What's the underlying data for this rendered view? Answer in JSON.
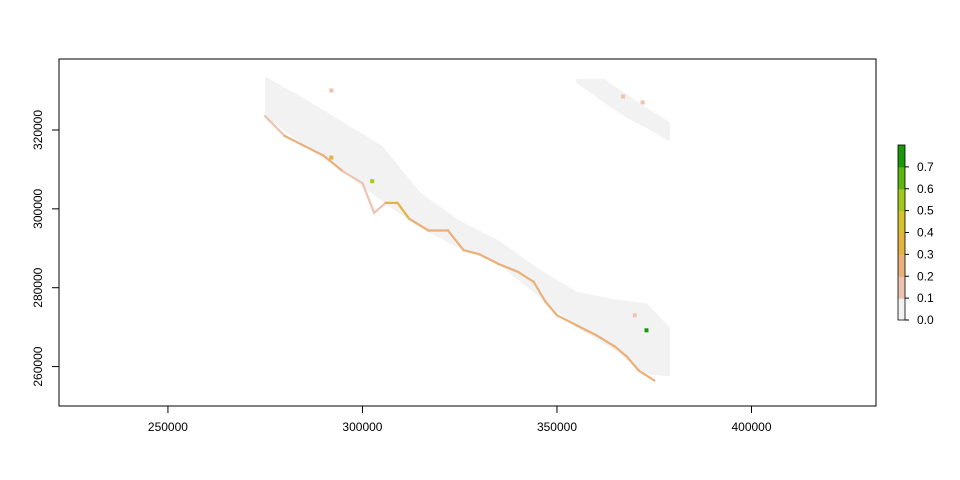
{
  "chart_data": {
    "type": "heatmap",
    "xlim": [
      222000,
      432000
    ],
    "ylim": [
      250000,
      338000
    ],
    "x_ticks": [
      {
        "value": 250000,
        "label": "250000"
      },
      {
        "value": 300000,
        "label": "300000"
      },
      {
        "value": 350000,
        "label": "350000"
      },
      {
        "value": 400000,
        "label": "400000"
      }
    ],
    "y_ticks": [
      {
        "value": 260000,
        "label": "260000"
      },
      {
        "value": 280000,
        "label": "280000"
      },
      {
        "value": 300000,
        "label": "300000"
      },
      {
        "value": 320000,
        "label": "320000"
      }
    ],
    "legend": {
      "min": 0,
      "max": 0.8,
      "ticks": [
        {
          "value": 0.0,
          "label": "0.0"
        },
        {
          "value": 0.1,
          "label": "0.1"
        },
        {
          "value": 0.2,
          "label": "0.2"
        },
        {
          "value": 0.3,
          "label": "0.3"
        },
        {
          "value": 0.4,
          "label": "0.4"
        },
        {
          "value": 0.5,
          "label": "0.5"
        },
        {
          "value": 0.6,
          "label": "0.6"
        },
        {
          "value": 0.7,
          "label": "0.7"
        }
      ],
      "colors": [
        "#f2f2f2",
        "#eec3b2",
        "#e9b07a",
        "#e5b33f",
        "#d6c22a",
        "#a3c81b",
        "#5cb80f",
        "#1a9a0a"
      ]
    },
    "raster": {
      "background_color": "#f2f2f2",
      "main_band": [
        {
          "x": 275000,
          "y_top": 333500,
          "y_bot": 323500
        },
        {
          "x": 285000,
          "y_top": 328000,
          "y_bot": 316000
        },
        {
          "x": 295000,
          "y_top": 322000,
          "y_bot": 309500
        },
        {
          "x": 305000,
          "y_top": 316000,
          "y_bot": 302000
        },
        {
          "x": 315000,
          "y_top": 304000,
          "y_bot": 295000
        },
        {
          "x": 325000,
          "y_top": 297000,
          "y_bot": 290000
        },
        {
          "x": 335000,
          "y_top": 292000,
          "y_bot": 286000
        },
        {
          "x": 345000,
          "y_top": 285000,
          "y_bot": 278000
        },
        {
          "x": 355000,
          "y_top": 279000,
          "y_bot": 270000
        },
        {
          "x": 365000,
          "y_top": 277000,
          "y_bot": 264000
        },
        {
          "x": 373000,
          "y_top": 276000,
          "y_bot": 258000
        },
        {
          "x": 379000,
          "y_top": 270000,
          "y_bot": 257500
        }
      ],
      "northeast_band": [
        {
          "x": 355000,
          "y_top": 333000,
          "y_bot": 332000
        },
        {
          "x": 362000,
          "y_top": 333000,
          "y_bot": 327000
        },
        {
          "x": 368000,
          "y_top": 329000,
          "y_bot": 323000
        },
        {
          "x": 374000,
          "y_top": 325000,
          "y_bot": 320000
        },
        {
          "x": 379000,
          "y_top": 322000,
          "y_bot": 317000
        }
      ],
      "coast_edge": [
        {
          "x": 275000,
          "y": 323500,
          "value": 0.15
        },
        {
          "x": 280000,
          "y": 318500,
          "value": 0.2
        },
        {
          "x": 285000,
          "y": 316000,
          "value": 0.2
        },
        {
          "x": 290000,
          "y": 313500,
          "value": 0.2
        },
        {
          "x": 295000,
          "y": 309500,
          "value": 0.15
        },
        {
          "x": 300000,
          "y": 306500,
          "value": 0.15
        },
        {
          "x": 303000,
          "y": 299000,
          "value": 0.15
        },
        {
          "x": 306000,
          "y": 301500,
          "value": 0.35
        },
        {
          "x": 309000,
          "y": 301500,
          "value": 0.35
        },
        {
          "x": 312000,
          "y": 297500,
          "value": 0.2
        },
        {
          "x": 317000,
          "y": 294500,
          "value": 0.2
        },
        {
          "x": 322000,
          "y": 294500,
          "value": 0.2
        },
        {
          "x": 326000,
          "y": 289500,
          "value": 0.2
        },
        {
          "x": 330000,
          "y": 288500,
          "value": 0.2
        },
        {
          "x": 335000,
          "y": 286000,
          "value": 0.2
        },
        {
          "x": 340000,
          "y": 284000,
          "value": 0.2
        },
        {
          "x": 344000,
          "y": 281500,
          "value": 0.2
        },
        {
          "x": 347000,
          "y": 276500,
          "value": 0.2
        },
        {
          "x": 350000,
          "y": 273000,
          "value": 0.2
        },
        {
          "x": 355000,
          "y": 270500,
          "value": 0.2
        },
        {
          "x": 360000,
          "y": 268000,
          "value": 0.2
        },
        {
          "x": 365000,
          "y": 265000,
          "value": 0.2
        },
        {
          "x": 368000,
          "y": 262500,
          "value": 0.2
        },
        {
          "x": 371000,
          "y": 259000,
          "value": 0.2
        },
        {
          "x": 375000,
          "y": 256500,
          "value": 0.2
        }
      ],
      "hotspots": [
        {
          "x": 292000,
          "y": 313000,
          "value": 0.35
        },
        {
          "x": 302500,
          "y": 307000,
          "value": 0.55
        },
        {
          "x": 373000,
          "y": 269200,
          "value": 0.75
        },
        {
          "x": 370000,
          "y": 273000,
          "value": 0.15
        },
        {
          "x": 292000,
          "y": 330000,
          "value": 0.1
        },
        {
          "x": 367000,
          "y": 328500,
          "value": 0.12
        },
        {
          "x": 372000,
          "y": 327000,
          "value": 0.1
        }
      ]
    }
  }
}
